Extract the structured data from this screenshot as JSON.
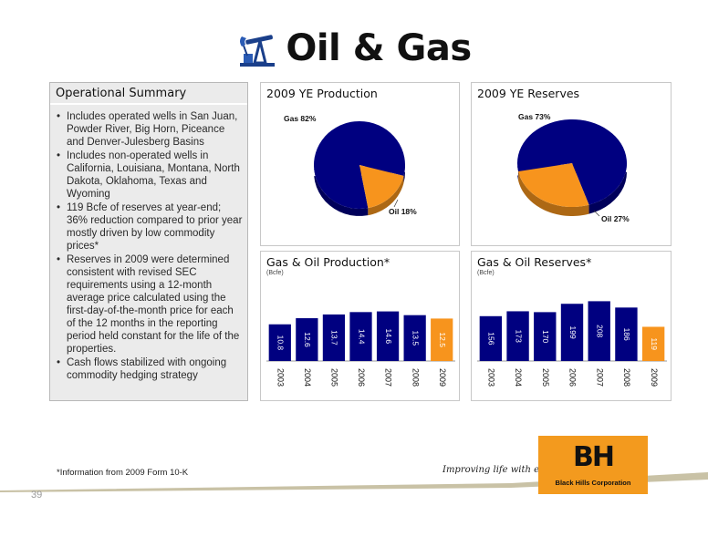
{
  "header": {
    "title": "Oil & Gas",
    "icon": "oil-pump-icon"
  },
  "summary": {
    "title": "Operational Summary",
    "bullets": [
      "Includes operated wells in San Juan, Powder River, Big Horn, Piceance and Denver-Julesberg Basins",
      "Includes non-operated wells in California, Louisiana, Montana, North Dakota, Oklahoma, Texas and Wyoming",
      "119 Bcfe of reserves at year-end; 36% reduction compared to prior year mostly driven by low  commodity prices*",
      "Reserves in 2009 were determined consistent with revised SEC requirements using a 12-month average price calculated using the first-day-of-the-month price for each of the 12 months in the reporting period held constant for the life of the properties.",
      "Cash flows stabilized with ongoing commodity hedging strategy"
    ]
  },
  "chart_data": [
    {
      "type": "pie",
      "title": "2009 YE Production",
      "slices": [
        {
          "name": "Gas",
          "label": "Gas 82%",
          "value": 82,
          "color": "#000080"
        },
        {
          "name": "Oil",
          "label": "Oil 18%",
          "value": 18,
          "color": "#f7941d"
        }
      ]
    },
    {
      "type": "pie",
      "title": "2009 YE Reserves",
      "slices": [
        {
          "name": "Gas",
          "label": "Gas 73%",
          "value": 73,
          "color": "#000080"
        },
        {
          "name": "Oil",
          "label": "Oil 27%",
          "value": 27,
          "color": "#f7941d"
        }
      ]
    },
    {
      "type": "bar",
      "title": "Gas & Oil Production*",
      "unit": "(Bcfe)",
      "categories": [
        "2003",
        "2004",
        "2005",
        "2006",
        "2007",
        "2008",
        "2009"
      ],
      "values": [
        10.8,
        12.6,
        13.7,
        14.4,
        14.6,
        13.5,
        12.5
      ],
      "labels": [
        "10.8",
        "12.6",
        "13.7",
        "14.4",
        "14.6",
        "13.5",
        "12.5"
      ],
      "colors": [
        "#000080",
        "#000080",
        "#000080",
        "#000080",
        "#000080",
        "#000080",
        "#f7941d"
      ],
      "ylim": [
        0,
        22
      ]
    },
    {
      "type": "bar",
      "title": "Gas & Oil Reserves*",
      "unit": "(Bcfe)",
      "categories": [
        "2003",
        "2004",
        "2005",
        "2006",
        "2007",
        "2008",
        "2009"
      ],
      "values": [
        156,
        173,
        170,
        199,
        208,
        186,
        119
      ],
      "labels": [
        "156",
        "173",
        "170",
        "199",
        "208",
        "186",
        "119"
      ],
      "colors": [
        "#000080",
        "#000080",
        "#000080",
        "#000080",
        "#000080",
        "#000080",
        "#f7941d"
      ],
      "ylim": [
        0,
        260
      ]
    }
  ],
  "footer": {
    "footnote": "*Information from 2009 Form 10-K",
    "page_number": "39",
    "tagline": "Improving life with energy",
    "logo_mark": "BH",
    "logo_text": "Black Hills Corporation"
  }
}
